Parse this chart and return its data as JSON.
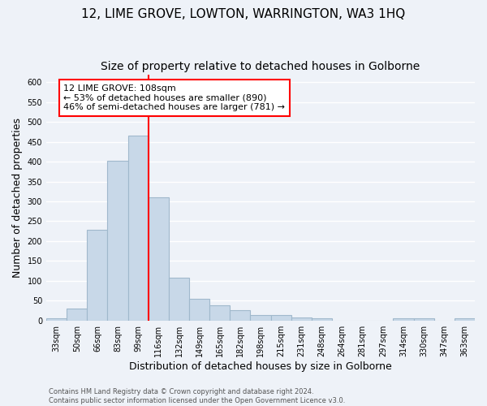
{
  "title": "12, LIME GROVE, LOWTON, WARRINGTON, WA3 1HQ",
  "subtitle": "Size of property relative to detached houses in Golborne",
  "xlabel": "Distribution of detached houses by size in Golborne",
  "ylabel": "Number of detached properties",
  "footer_line1": "Contains HM Land Registry data © Crown copyright and database right 2024.",
  "footer_line2": "Contains public sector information licensed under the Open Government Licence v3.0.",
  "bar_labels": [
    "33sqm",
    "50sqm",
    "66sqm",
    "83sqm",
    "99sqm",
    "116sqm",
    "132sqm",
    "149sqm",
    "165sqm",
    "182sqm",
    "198sqm",
    "215sqm",
    "231sqm",
    "248sqm",
    "264sqm",
    "281sqm",
    "297sqm",
    "314sqm",
    "330sqm",
    "347sqm",
    "363sqm"
  ],
  "bar_values": [
    5,
    30,
    228,
    402,
    465,
    310,
    108,
    54,
    38,
    27,
    14,
    13,
    8,
    5,
    0,
    0,
    0,
    5,
    5,
    0,
    5
  ],
  "bar_color": "#c8d8e8",
  "bar_edgecolor": "#a0b8cc",
  "vline_color": "red",
  "annotation_line1": "12 LIME GROVE: 108sqm",
  "annotation_line2": "← 53% of detached houses are smaller (890)",
  "annotation_line3": "46% of semi-detached houses are larger (781) →",
  "annotation_box_color": "white",
  "annotation_box_edgecolor": "red",
  "ylim": [
    0,
    620
  ],
  "yticks": [
    0,
    50,
    100,
    150,
    200,
    250,
    300,
    350,
    400,
    450,
    500,
    550,
    600
  ],
  "background_color": "#eef2f8",
  "grid_color": "white",
  "title_fontsize": 11,
  "subtitle_fontsize": 10,
  "ylabel_fontsize": 9,
  "xlabel_fontsize": 9,
  "annotation_fontsize": 8,
  "tick_fontsize": 7,
  "footer_fontsize": 6
}
